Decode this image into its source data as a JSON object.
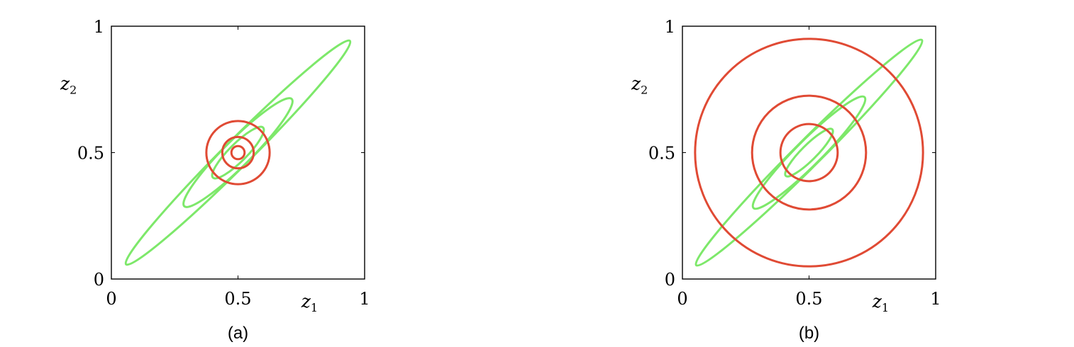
{
  "colors": {
    "correlated": "#7de86a",
    "factorized": "#e04a34"
  },
  "chart_data": [
    {
      "type": "contour",
      "panel_label": "(a)",
      "xlabel": "z",
      "xlabel_sub": "1",
      "ylabel": "z",
      "ylabel_sub": "2",
      "xlim": [
        0,
        1
      ],
      "ylim": [
        0,
        1
      ],
      "x_ticks": [
        "0",
        "0.5",
        "1"
      ],
      "y_ticks": [
        "0",
        "0.5",
        "1"
      ],
      "series": [
        {
          "color": "#7de86a",
          "contours": [
            {
              "cx": 0.5,
              "cy": 0.5,
              "a": 0.625,
              "b": 0.053,
              "angle_deg": 45
            },
            {
              "cx": 0.5,
              "cy": 0.5,
              "a": 0.3,
              "b": 0.052,
              "angle_deg": 45
            },
            {
              "cx": 0.5,
              "cy": 0.5,
              "a": 0.14,
              "b": 0.035,
              "angle_deg": 45
            }
          ]
        },
        {
          "color": "#e04a34",
          "contours": [
            {
              "cx": 0.5,
              "cy": 0.5,
              "a": 0.125,
              "b": 0.125,
              "angle_deg": 0
            },
            {
              "cx": 0.5,
              "cy": 0.5,
              "a": 0.062,
              "b": 0.062,
              "angle_deg": 0
            },
            {
              "cx": 0.5,
              "cy": 0.5,
              "a": 0.026,
              "b": 0.026,
              "angle_deg": 0
            }
          ]
        }
      ]
    },
    {
      "type": "contour",
      "panel_label": "(b)",
      "xlabel": "z",
      "xlabel_sub": "1",
      "ylabel": "z",
      "ylabel_sub": "2",
      "xlim": [
        0,
        1
      ],
      "ylim": [
        0,
        1
      ],
      "x_ticks": [
        "0",
        "0.5",
        "1"
      ],
      "y_ticks": [
        "0",
        "0.5",
        "1"
      ],
      "series": [
        {
          "color": "#7de86a",
          "contours": [
            {
              "cx": 0.5,
              "cy": 0.5,
              "a": 0.63,
              "b": 0.052,
              "angle_deg": 45
            },
            {
              "cx": 0.5,
              "cy": 0.5,
              "a": 0.31,
              "b": 0.05,
              "angle_deg": 45
            },
            {
              "cx": 0.5,
              "cy": 0.5,
              "a": 0.13,
              "b": 0.03,
              "angle_deg": 45
            }
          ]
        },
        {
          "color": "#e04a34",
          "contours": [
            {
              "cx": 0.5,
              "cy": 0.5,
              "a": 0.45,
              "b": 0.45,
              "angle_deg": 0
            },
            {
              "cx": 0.5,
              "cy": 0.5,
              "a": 0.225,
              "b": 0.225,
              "angle_deg": 0
            },
            {
              "cx": 0.5,
              "cy": 0.5,
              "a": 0.113,
              "b": 0.113,
              "angle_deg": 0
            }
          ]
        }
      ]
    }
  ]
}
